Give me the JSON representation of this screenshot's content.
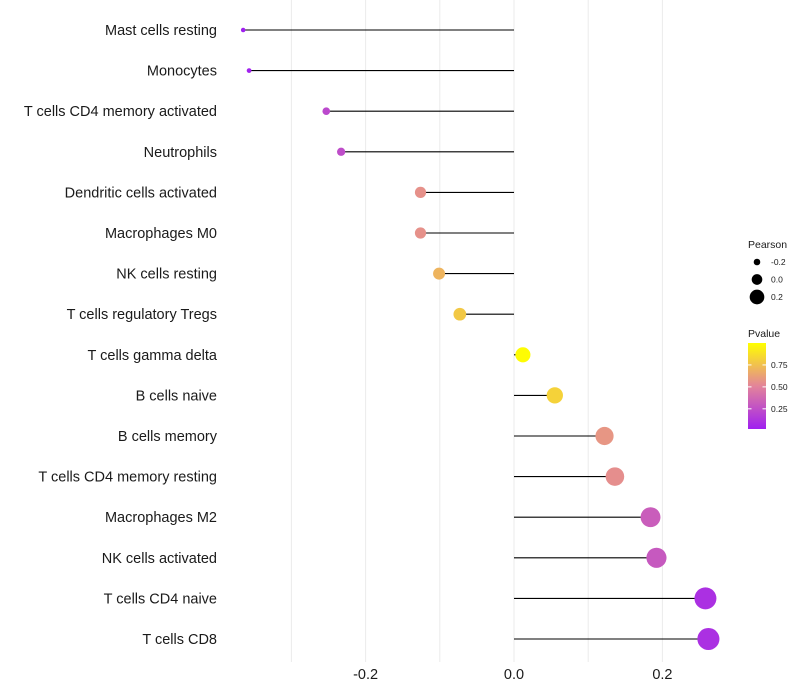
{
  "chart_data": {
    "type": "lollipop",
    "title": "",
    "xlabel": "",
    "ylabel": "",
    "xlim": [
      -0.37,
      0.3
    ],
    "x_ticks": [
      -0.2,
      0.0,
      0.2
    ],
    "x_tick_labels": [
      "-0.2",
      "0.0",
      "0.2"
    ],
    "grid": true,
    "baseline": 0,
    "categories": [
      "Mast cells resting",
      "Monocytes",
      "T cells CD4 memory activated",
      "Neutrophils",
      "Dendritic cells activated",
      "Macrophages M0",
      "NK cells resting",
      "T cells regulatory  Tregs",
      "T cells gamma delta",
      "B cells naive",
      "B cells memory",
      "T cells CD4 memory resting",
      "Macrophages M2",
      "NK cells activated",
      "T cells CD4 naive",
      "T cells CD8"
    ],
    "pearson": [
      -0.365,
      -0.357,
      -0.253,
      -0.233,
      -0.126,
      -0.126,
      -0.101,
      -0.073,
      0.012,
      0.055,
      0.122,
      0.136,
      0.184,
      0.192,
      0.258,
      0.262
    ],
    "pvalue": [
      0.02,
      0.03,
      0.22,
      0.24,
      0.56,
      0.56,
      0.7,
      0.78,
      0.99,
      0.82,
      0.58,
      0.55,
      0.32,
      0.3,
      0.1,
      0.1
    ],
    "legend_position": "right",
    "size_legend": {
      "title": "Pearson",
      "items": [
        {
          "label": "-0.2",
          "value": -0.2
        },
        {
          "label": "0.0",
          "value": 0.0
        },
        {
          "label": "0.2",
          "value": 0.2
        }
      ]
    },
    "color_legend": {
      "title": "Pvalue",
      "ticks": [
        {
          "label": "0.75",
          "value": 0.75
        },
        {
          "label": "0.50",
          "value": 0.5
        },
        {
          "label": "0.25",
          "value": 0.25
        }
      ],
      "range": [
        0.02,
        1.0
      ],
      "colors": {
        "low": "#a020f0",
        "mid": "#e3849a",
        "high": "#ffff00"
      }
    }
  },
  "colors": {
    "stem": "#000000",
    "grid": "#ebebeb",
    "text": "#1a1a1a"
  }
}
